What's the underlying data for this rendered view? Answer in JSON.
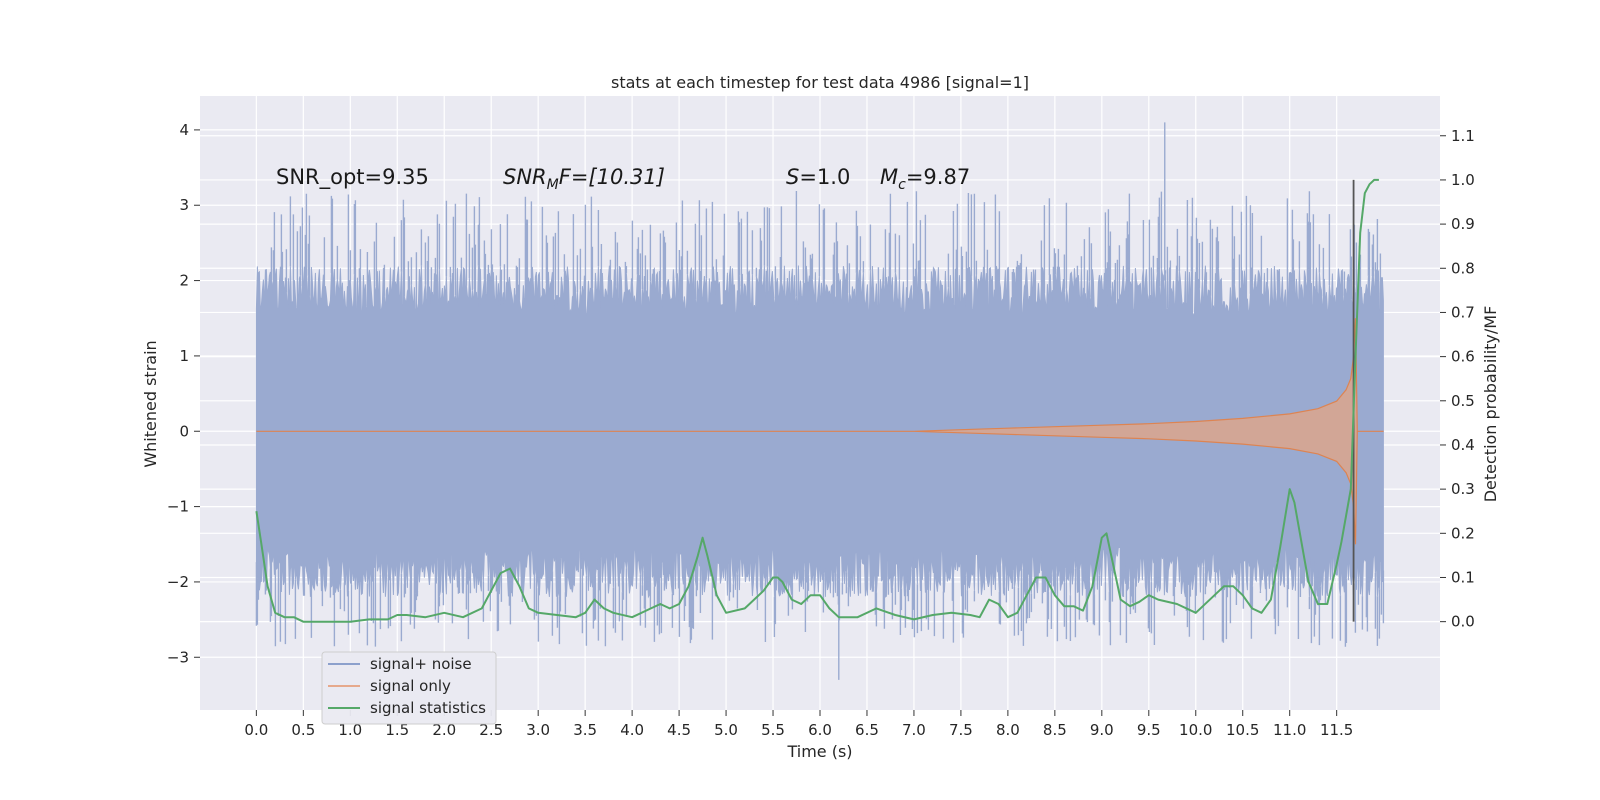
{
  "chart_data": {
    "type": "line",
    "title": "stats at each timestep for test data 4986 [signal=1]",
    "xlabel": "Time (s)",
    "ylabel": "Whitened strain",
    "y2label": "Detection probability/MF",
    "xlim": [
      -0.6,
      12.6
    ],
    "ylim": [
      -3.7,
      4.45
    ],
    "y2lim": [
      -0.2,
      1.19
    ],
    "x_ticks": [
      "0.0",
      "0.5",
      "1.0",
      "1.5",
      "2.0",
      "2.5",
      "3.0",
      "3.5",
      "4.0",
      "4.5",
      "5.0",
      "5.5",
      "6.0",
      "6.5",
      "7.0",
      "7.5",
      "8.0",
      "8.5",
      "9.0",
      "9.5",
      "10.0",
      "10.5",
      "11.0",
      "11.5"
    ],
    "y_ticks": [
      "4",
      "3",
      "2",
      "1",
      "0",
      "−1",
      "−2",
      "−3"
    ],
    "y2_ticks": [
      "1.1",
      "1.0",
      "0.9",
      "0.8",
      "0.7",
      "0.6",
      "0.5",
      "0.4",
      "0.3",
      "0.2",
      "0.1",
      "0.0"
    ],
    "grid": true,
    "legend_position": "lower-left",
    "annotations": [
      {
        "label": "SNR_opt=9.35"
      },
      {
        "label": "SNR",
        "sub": "M",
        "tail": "F=[10.31]"
      },
      {
        "label": "S",
        "tail": "=1.0"
      },
      {
        "label": "M",
        "sub": "c",
        "tail": "=9.87"
      }
    ],
    "series": [
      {
        "name": "signal+ noise",
        "color": "#4c72b0",
        "axis": "left",
        "t_range": [
          0,
          12.0
        ],
        "envelope_approx": {
          "typical_max": 2.2,
          "typical_min": -2.2,
          "peak_max": 4.1,
          "peak_min": -3.3,
          "peak_max_at": 9.67,
          "peak_min_at": 6.2
        }
      },
      {
        "name": "signal only",
        "color": "#dd8452",
        "axis": "left",
        "t": [
          0,
          7.0,
          7.5,
          8.0,
          8.5,
          9.0,
          9.5,
          10.0,
          10.5,
          11.0,
          11.3,
          11.5,
          11.6,
          11.65,
          11.68,
          11.7,
          11.72,
          12.0
        ],
        "amplitude": [
          0.0,
          0.0,
          0.02,
          0.04,
          0.06,
          0.08,
          0.1,
          0.13,
          0.17,
          0.23,
          0.3,
          0.4,
          0.55,
          0.7,
          1.0,
          1.5,
          0.0,
          0.0
        ]
      },
      {
        "name": "signal statistics",
        "color": "#55a868",
        "axis": "right",
        "x": [
          0.0,
          0.05,
          0.12,
          0.2,
          0.3,
          0.4,
          0.5,
          0.6,
          0.8,
          1.0,
          1.2,
          1.4,
          1.5,
          1.6,
          1.8,
          2.0,
          2.2,
          2.4,
          2.5,
          2.6,
          2.7,
          2.8,
          2.9,
          3.0,
          3.2,
          3.4,
          3.5,
          3.6,
          3.7,
          3.8,
          4.0,
          4.2,
          4.3,
          4.4,
          4.5,
          4.6,
          4.7,
          4.75,
          4.8,
          4.9,
          5.0,
          5.2,
          5.4,
          5.5,
          5.55,
          5.6,
          5.7,
          5.8,
          5.9,
          6.0,
          6.1,
          6.2,
          6.4,
          6.6,
          6.8,
          7.0,
          7.2,
          7.4,
          7.6,
          7.7,
          7.8,
          7.9,
          8.0,
          8.1,
          8.2,
          8.3,
          8.4,
          8.5,
          8.6,
          8.7,
          8.8,
          8.9,
          9.0,
          9.05,
          9.1,
          9.2,
          9.3,
          9.4,
          9.5,
          9.6,
          9.8,
          10.0,
          10.2,
          10.3,
          10.4,
          10.5,
          10.6,
          10.7,
          10.8,
          10.9,
          11.0,
          11.05,
          11.1,
          11.2,
          11.3,
          11.4,
          11.5,
          11.55,
          11.6,
          11.65,
          11.7,
          11.75,
          11.8,
          11.85,
          11.9,
          11.95
        ],
        "y": [
          0.25,
          0.18,
          0.08,
          0.02,
          0.01,
          0.01,
          0.0,
          0.0,
          0.0,
          0.0,
          0.005,
          0.005,
          0.015,
          0.015,
          0.01,
          0.02,
          0.01,
          0.03,
          0.07,
          0.11,
          0.12,
          0.08,
          0.03,
          0.02,
          0.015,
          0.01,
          0.02,
          0.05,
          0.03,
          0.02,
          0.01,
          0.03,
          0.04,
          0.03,
          0.04,
          0.08,
          0.15,
          0.19,
          0.15,
          0.06,
          0.02,
          0.03,
          0.07,
          0.1,
          0.1,
          0.09,
          0.05,
          0.04,
          0.06,
          0.06,
          0.03,
          0.01,
          0.01,
          0.03,
          0.015,
          0.005,
          0.015,
          0.02,
          0.015,
          0.01,
          0.05,
          0.04,
          0.01,
          0.02,
          0.06,
          0.1,
          0.1,
          0.06,
          0.035,
          0.035,
          0.025,
          0.08,
          0.19,
          0.2,
          0.15,
          0.05,
          0.035,
          0.045,
          0.06,
          0.05,
          0.04,
          0.02,
          0.06,
          0.08,
          0.08,
          0.06,
          0.03,
          0.02,
          0.05,
          0.17,
          0.3,
          0.27,
          0.21,
          0.09,
          0.04,
          0.04,
          0.13,
          0.18,
          0.24,
          0.3,
          0.6,
          0.88,
          0.97,
          0.99,
          1.0,
          1.0
        ]
      }
    ],
    "vertical_marker": {
      "x": 11.68,
      "color": "#555555"
    }
  }
}
